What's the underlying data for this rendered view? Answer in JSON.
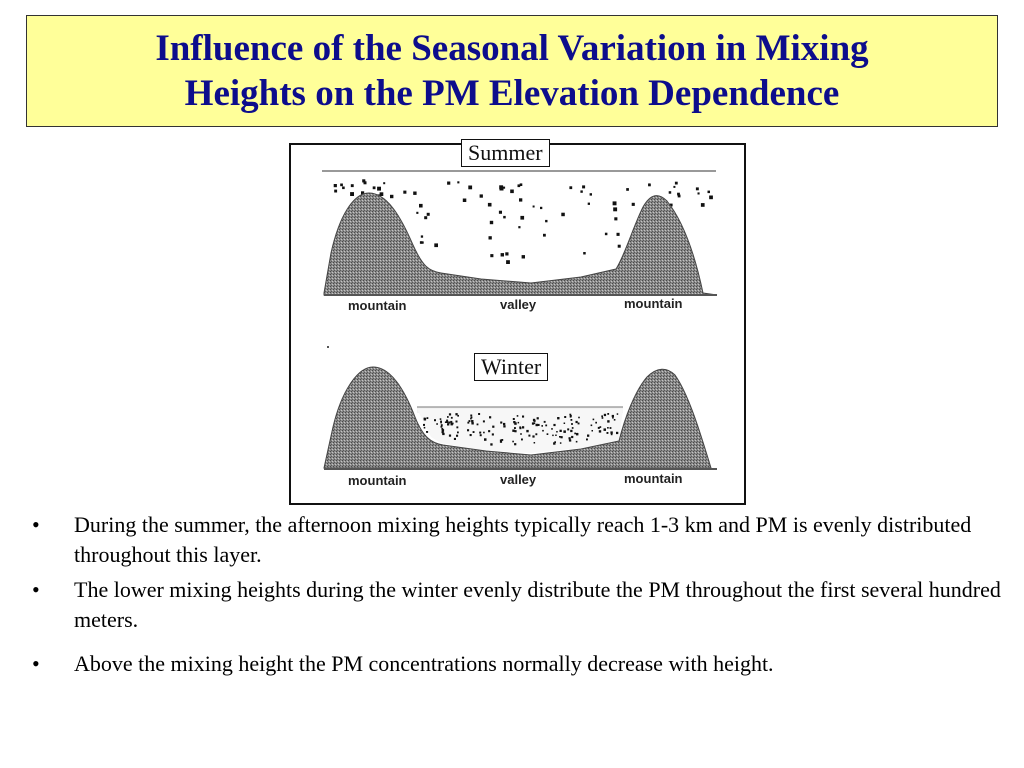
{
  "title": {
    "line1": "Influence of the Seasonal Variation in Mixing",
    "line2": "Heights on the PM Elevation Dependence"
  },
  "diagram": {
    "summer": {
      "label": "Summer",
      "left_label": "mountain",
      "center_label": "valley",
      "right_label": "mountain"
    },
    "winter": {
      "label": "Winter",
      "left_label": "mountain",
      "center_label": "valley",
      "right_label": "mountain"
    }
  },
  "bullets": [
    {
      "mark": "•",
      "text": "During the summer, the afternoon mixing heights typically reach 1-3 km and PM is evenly distributed throughout this layer."
    },
    {
      "mark": "•",
      "text": "The lower mixing heights during the winter evenly distribute the PM throughout the first several hundred meters."
    },
    {
      "mark": "•",
      "text": "Above the mixing height the PM concentrations normally decrease with height."
    }
  ],
  "colors": {
    "title_background": "#ffff99",
    "title_text": "#0d0d8c",
    "mountain_fill": "#8a8a8a"
  }
}
